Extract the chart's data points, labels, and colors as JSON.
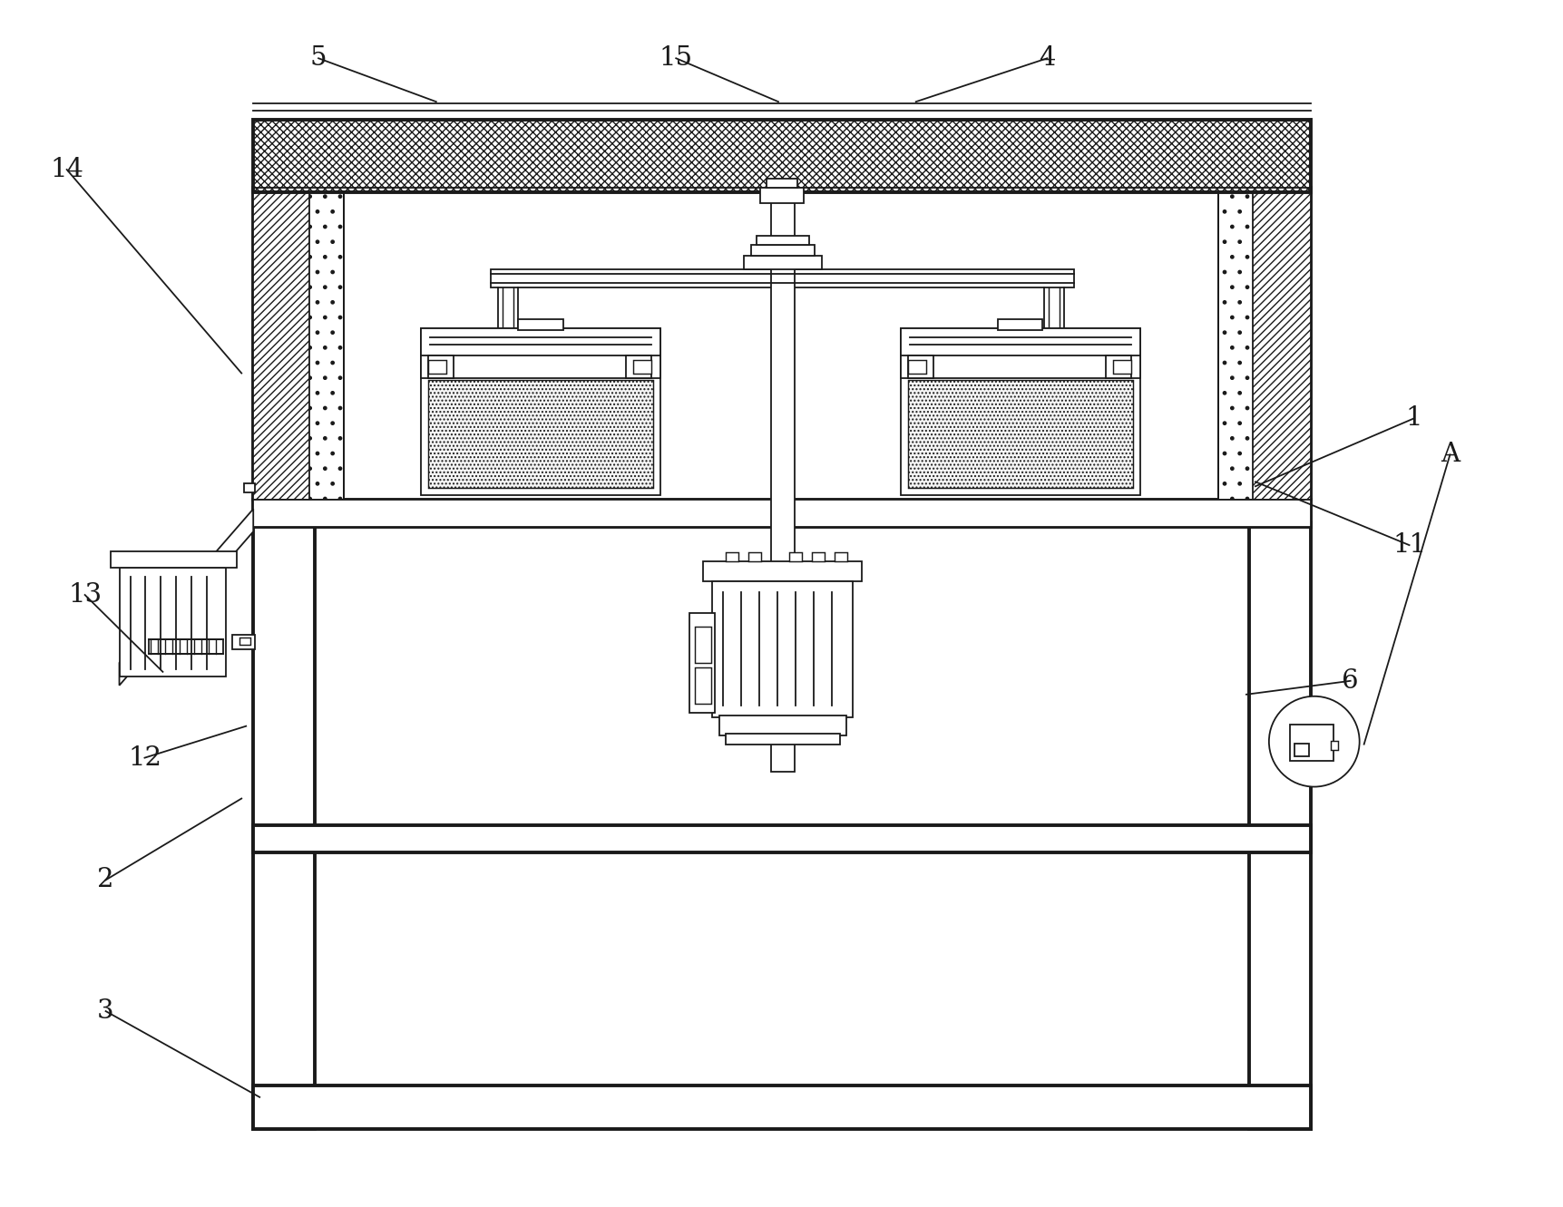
{
  "bg_color": "#ffffff",
  "lc": "#1a1a1a",
  "fig_width": 17.23,
  "fig_height": 13.31,
  "dpi": 100,
  "labels": [
    [
      "14",
      72,
      1145,
      265,
      920
    ],
    [
      "5",
      350,
      1268,
      480,
      1220
    ],
    [
      "15",
      745,
      1268,
      858,
      1220
    ],
    [
      "4",
      1155,
      1268,
      1010,
      1220
    ],
    [
      "13",
      92,
      675,
      178,
      590
    ],
    [
      "12",
      158,
      495,
      270,
      530
    ],
    [
      "2",
      115,
      360,
      265,
      450
    ],
    [
      "3",
      115,
      215,
      285,
      120
    ],
    [
      "1",
      1560,
      870,
      1385,
      795
    ],
    [
      "11",
      1555,
      730,
      1385,
      800
    ],
    [
      "6",
      1490,
      580,
      1375,
      565
    ],
    [
      "A",
      1600,
      830,
      1505,
      510
    ]
  ]
}
